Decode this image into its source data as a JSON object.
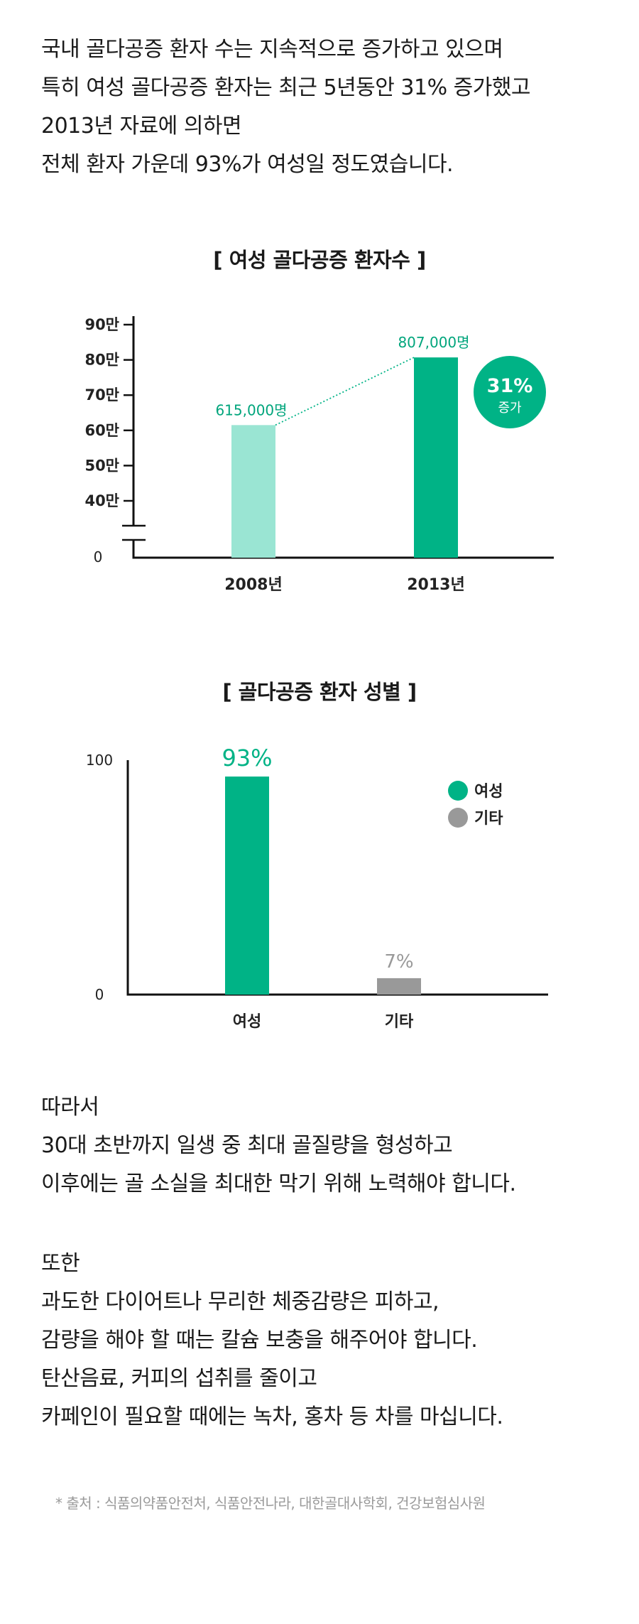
{
  "intro": [
    "국내 골다공증 환자 수는 지속적으로 증가하고 있으며",
    "특히 여성 골다공증 환자는 최근 5년동안 31% 증가했고",
    "2013년 자료에 의하면",
    "전체 환자 가운데 93%가 여성일 정도였습니다."
  ],
  "chart_data": [
    {
      "type": "bar",
      "title": "[ 여성 골다공증 환자수 ]",
      "categories": [
        "2008년",
        "2013년"
      ],
      "values": [
        615000,
        807000
      ],
      "data_labels": [
        "615,000명",
        "807,000명"
      ],
      "y_ticks": [
        {
          "value": 0,
          "label": "0"
        },
        {
          "value": 400000,
          "label": "40만"
        },
        {
          "value": 500000,
          "label": "50만"
        },
        {
          "value": 600000,
          "label": "60만"
        },
        {
          "value": 700000,
          "label": "70만"
        },
        {
          "value": 800000,
          "label": "80만"
        },
        {
          "value": 900000,
          "label": "90만"
        }
      ],
      "ylim": [
        0,
        900000
      ],
      "axis_break": true,
      "grid": false,
      "badge": {
        "value": "31%",
        "label": "증가"
      },
      "colors": [
        "#9ae5d3",
        "#00b386"
      ]
    },
    {
      "type": "bar",
      "title": "[ 골다공증 환자 성별 ]",
      "categories": [
        "여성",
        "기타"
      ],
      "values": [
        93,
        7
      ],
      "data_labels": [
        "93%",
        "7%"
      ],
      "y_ticks": [
        {
          "value": 0,
          "label": "0"
        },
        {
          "value": 100,
          "label": "100"
        }
      ],
      "ylim": [
        0,
        100
      ],
      "grid": false,
      "legend": {
        "position": "top-right",
        "items": [
          "여성",
          "기타"
        ]
      },
      "colors": [
        "#00b386",
        "#999999"
      ]
    }
  ],
  "closing_1": [
    "따라서",
    "30대 초반까지 일생 중 최대 골질량을 형성하고",
    "이후에는 골 소실을 최대한 막기 위해 노력해야 합니다."
  ],
  "closing_2": [
    "또한",
    "과도한 다이어트나 무리한 체중감량은 피하고,",
    "감량을 해야 할 때는 칼슘 보충을 해주어야 합니다.",
    "탄산음료, 커피의 섭취를 줄이고",
    "카페인이 필요할 때에는 녹차, 홍차 등 차를 마십니다."
  ],
  "source": "* 출처 : 식품의약품안전처, 식품안전나라, 대한골대사학회, 건강보험심사원"
}
